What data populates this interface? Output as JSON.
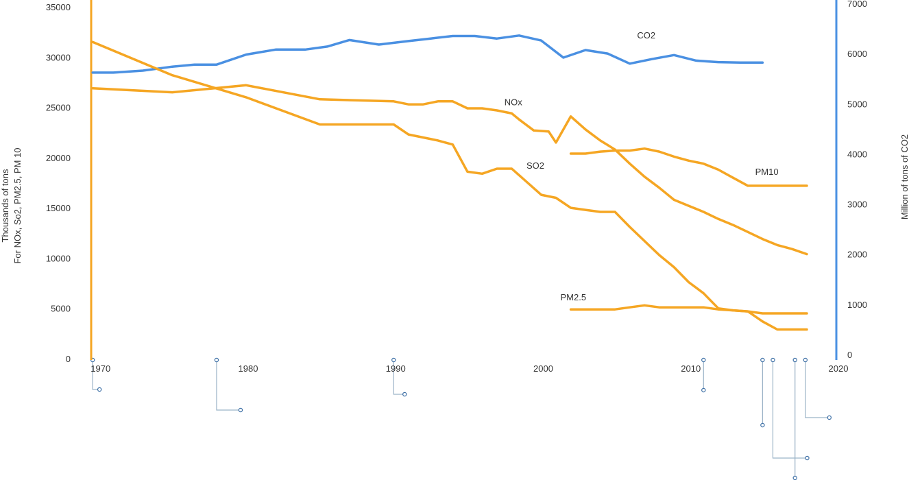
{
  "colors": {
    "pollutant": "#f5a623",
    "co2": "#4a90e2",
    "tick_text": "#333333",
    "annotation": "#9bb3c7"
  },
  "chart_data": {
    "type": "line",
    "left_axis": {
      "label_line1": "Thousands of tons",
      "label_line2": "For NOx, So2, PM2.5, PM 10",
      "ticks": [
        "0",
        "5000",
        "10000",
        "15000",
        "20000",
        "25000",
        "30000",
        "35000"
      ],
      "range": [
        0,
        35000
      ]
    },
    "right_axis": {
      "label": "Million of tons of CO2",
      "ticks": [
        "0",
        "1000",
        "2000",
        "3000",
        "4000",
        "5000",
        "6000",
        "7000"
      ],
      "range": [
        0,
        7000
      ]
    },
    "x_axis": {
      "ticks": [
        "1970",
        "1980",
        "1990",
        "2000",
        "2010",
        "2020"
      ],
      "range": [
        1969.5,
        2020
      ]
    },
    "grid": false,
    "series": [
      {
        "name": "CO2",
        "axis": "right",
        "label_year": 2006.5,
        "label_value": 6300,
        "x": [
          1969.6,
          1971,
          1973,
          1975,
          1976.5,
          1978,
          1980,
          1982,
          1984,
          1985.5,
          1987,
          1989,
          1991,
          1992.5,
          1994,
          1995.5,
          1997,
          1998.5,
          2000,
          2001.5,
          2003,
          2004.5,
          2006,
          2007.5,
          2009,
          2010.5,
          2012,
          2013.5,
          2015
        ],
        "y": [
          5620,
          5620,
          5660,
          5740,
          5780,
          5780,
          5980,
          6080,
          6080,
          6140,
          6270,
          6180,
          6250,
          6300,
          6350,
          6350,
          6300,
          6360,
          6260,
          5920,
          6070,
          6000,
          5800,
          5890,
          5970,
          5860,
          5830,
          5820,
          5820
        ]
      },
      {
        "name": "NOx",
        "axis": "left",
        "label_year": 1997.5,
        "label_value": 25200,
        "x": [
          1969.6,
          1975,
          1980,
          1985,
          1990,
          1991,
          1992,
          1993,
          1994,
          1995,
          1996,
          1997,
          1998,
          1998.5,
          1999.5,
          2000.5,
          2001,
          2002,
          2003,
          2004,
          2005,
          2006,
          2007,
          2008,
          2009,
          2010,
          2011,
          2012,
          2013,
          2014,
          2015,
          2016,
          2017,
          2018
        ],
        "y": [
          26900,
          26500,
          27200,
          25800,
          25600,
          25300,
          25300,
          25600,
          25600,
          24900,
          24900,
          24700,
          24400,
          23800,
          22700,
          22600,
          21500,
          24100,
          22800,
          21700,
          20800,
          19400,
          18100,
          17000,
          15800,
          15200,
          14600,
          13900,
          13300,
          12600,
          11900,
          11300,
          10900,
          10400
        ]
      },
      {
        "name": "SO2",
        "axis": "left",
        "label_year": 1999,
        "label_value": 18900,
        "x": [
          1969.6,
          1975,
          1980,
          1985,
          1990,
          1991,
          1992,
          1993,
          1994,
          1995,
          1996,
          1997,
          1998,
          1999,
          2000,
          2001,
          2002,
          2003,
          2004,
          2005,
          2006,
          2007,
          2008,
          2009,
          2010,
          2011,
          2012,
          2013,
          2014,
          2015,
          2016,
          2017,
          2018
        ],
        "y": [
          31500,
          28200,
          26000,
          23300,
          23300,
          22300,
          22000,
          21700,
          21300,
          18600,
          18400,
          18900,
          18900,
          17600,
          16300,
          16000,
          15000,
          14800,
          14600,
          14600,
          13100,
          11700,
          10300,
          9100,
          7600,
          6500,
          5000,
          4800,
          4700,
          3700,
          2900,
          2900,
          2900
        ]
      },
      {
        "name": "PM10",
        "axis": "left",
        "label_year": 2014.5,
        "label_value": 18300,
        "x": [
          2002,
          2003,
          2004,
          2005,
          2006,
          2007,
          2008,
          2009,
          2010,
          2011,
          2012,
          2013,
          2014,
          2015,
          2016,
          2017,
          2018
        ],
        "y": [
          20400,
          20400,
          20600,
          20700,
          20700,
          20900,
          20600,
          20100,
          19700,
          19400,
          18800,
          18000,
          17200,
          17200,
          17200,
          17200,
          17200
        ]
      },
      {
        "name": "PM2.5",
        "axis": "left",
        "label_year": 2001.3,
        "label_value": 5800,
        "x": [
          2002,
          2003,
          2004,
          2005,
          2006,
          2007,
          2008,
          2009,
          2010,
          2011,
          2012,
          2013,
          2014,
          2015,
          2016,
          2017,
          2018
        ],
        "y": [
          4900,
          4900,
          4900,
          4900,
          5100,
          5300,
          5100,
          5100,
          5100,
          5100,
          4900,
          4800,
          4700,
          4500,
          4500,
          4500,
          4500
        ]
      }
    ],
    "annotation_years": [
      1969.6,
      1978,
      1990,
      2011,
      2015,
      2015.7,
      2017.2,
      2017.9
    ]
  }
}
